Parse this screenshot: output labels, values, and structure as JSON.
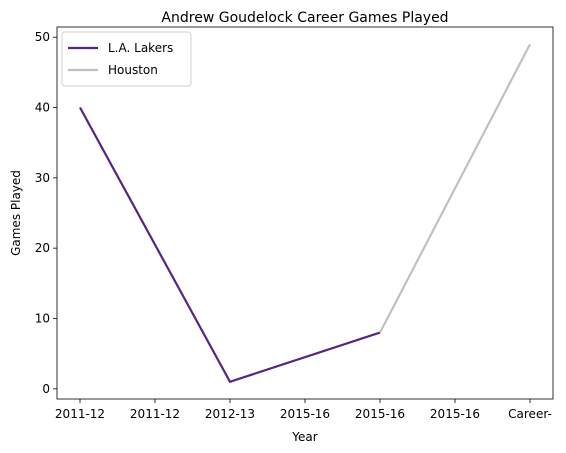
{
  "chart_data": {
    "type": "line",
    "title": "Andrew Goudelock Career Games Played",
    "xlabel": "Year",
    "ylabel": "Games Played",
    "categories": [
      "2011-12",
      "2011-12",
      "2012-13",
      "2015-16",
      "2015-16",
      "2015-16",
      "Career-"
    ],
    "ylim": [
      -1.45,
      51.45
    ],
    "yticks": [
      0,
      10,
      20,
      30,
      40,
      50
    ],
    "grid": false,
    "legend": "top-left",
    "series": [
      {
        "name": "L.A. Lakers",
        "color": "#552583",
        "points": [
          {
            "x": 0,
            "y": 40
          },
          {
            "x": 2,
            "y": 1
          },
          {
            "x": 4,
            "y": 8
          }
        ]
      },
      {
        "name": "Houston",
        "color": "#c0c0c0",
        "points": [
          {
            "x": 4,
            "y": 8
          },
          {
            "x": 6,
            "y": 49
          }
        ]
      }
    ]
  }
}
